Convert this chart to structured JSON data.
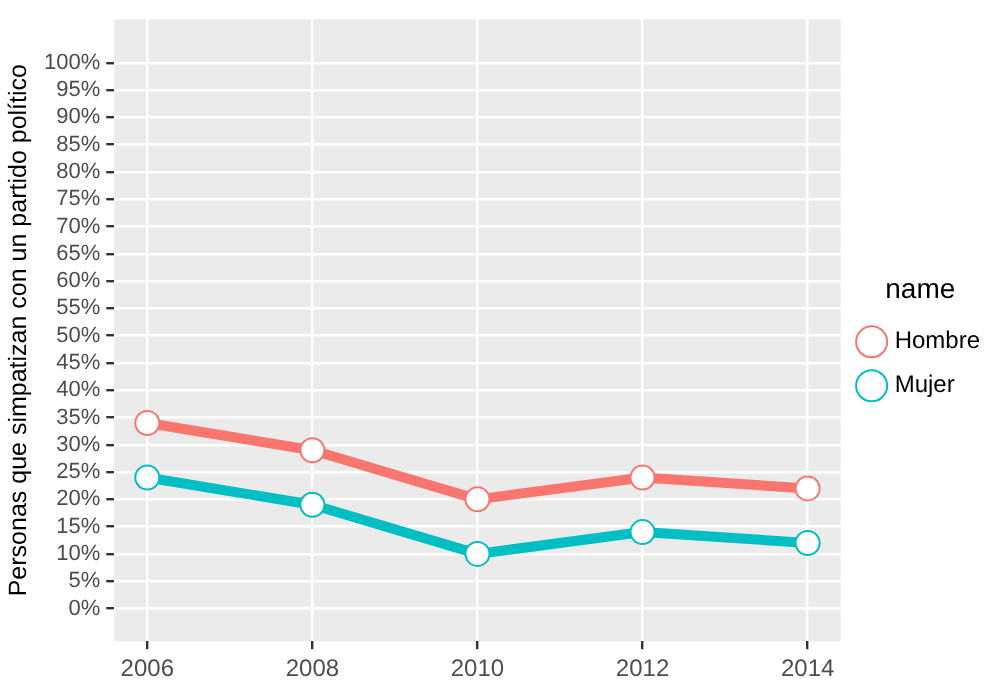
{
  "chart_data": {
    "type": "line",
    "ylabel": "Personas que simpatizan con un partido político",
    "legend_title": "name",
    "x": [
      2006,
      2008,
      2010,
      2012,
      2014
    ],
    "series": [
      {
        "name": "Hombre",
        "color": "#f8766d",
        "values": [
          34,
          29,
          20,
          24,
          22
        ]
      },
      {
        "name": "Mujer",
        "color": "#00bfc4",
        "values": [
          24,
          19,
          10,
          14,
          12
        ]
      }
    ],
    "xlim": [
      2005.6,
      2014.4
    ],
    "xticks": [
      2006,
      2008,
      2010,
      2012,
      2014
    ],
    "ylim": [
      -6,
      108
    ],
    "yticks": [
      {
        "value": 0,
        "label": "0%"
      },
      {
        "value": 5,
        "label": "5%"
      },
      {
        "value": 10,
        "label": "10%"
      },
      {
        "value": 15,
        "label": "15%"
      },
      {
        "value": 20,
        "label": "20%"
      },
      {
        "value": 25,
        "label": "25%"
      },
      {
        "value": 30,
        "label": "30%"
      },
      {
        "value": 35,
        "label": "35%"
      },
      {
        "value": 40,
        "label": "40%"
      },
      {
        "value": 45,
        "label": "45%"
      },
      {
        "value": 50,
        "label": "50%"
      },
      {
        "value": 55,
        "label": "55%"
      },
      {
        "value": 60,
        "label": "60%"
      },
      {
        "value": 65,
        "label": "65%"
      },
      {
        "value": 70,
        "label": "70%"
      },
      {
        "value": 75,
        "label": "75%"
      },
      {
        "value": 80,
        "label": "80%"
      },
      {
        "value": 85,
        "label": "85%"
      },
      {
        "value": 90,
        "label": "90%"
      },
      {
        "value": 95,
        "label": "95%"
      },
      {
        "value": 100,
        "label": "100%"
      }
    ],
    "grid": true,
    "legend": "right",
    "marker": "circle",
    "line_style": "solid"
  }
}
